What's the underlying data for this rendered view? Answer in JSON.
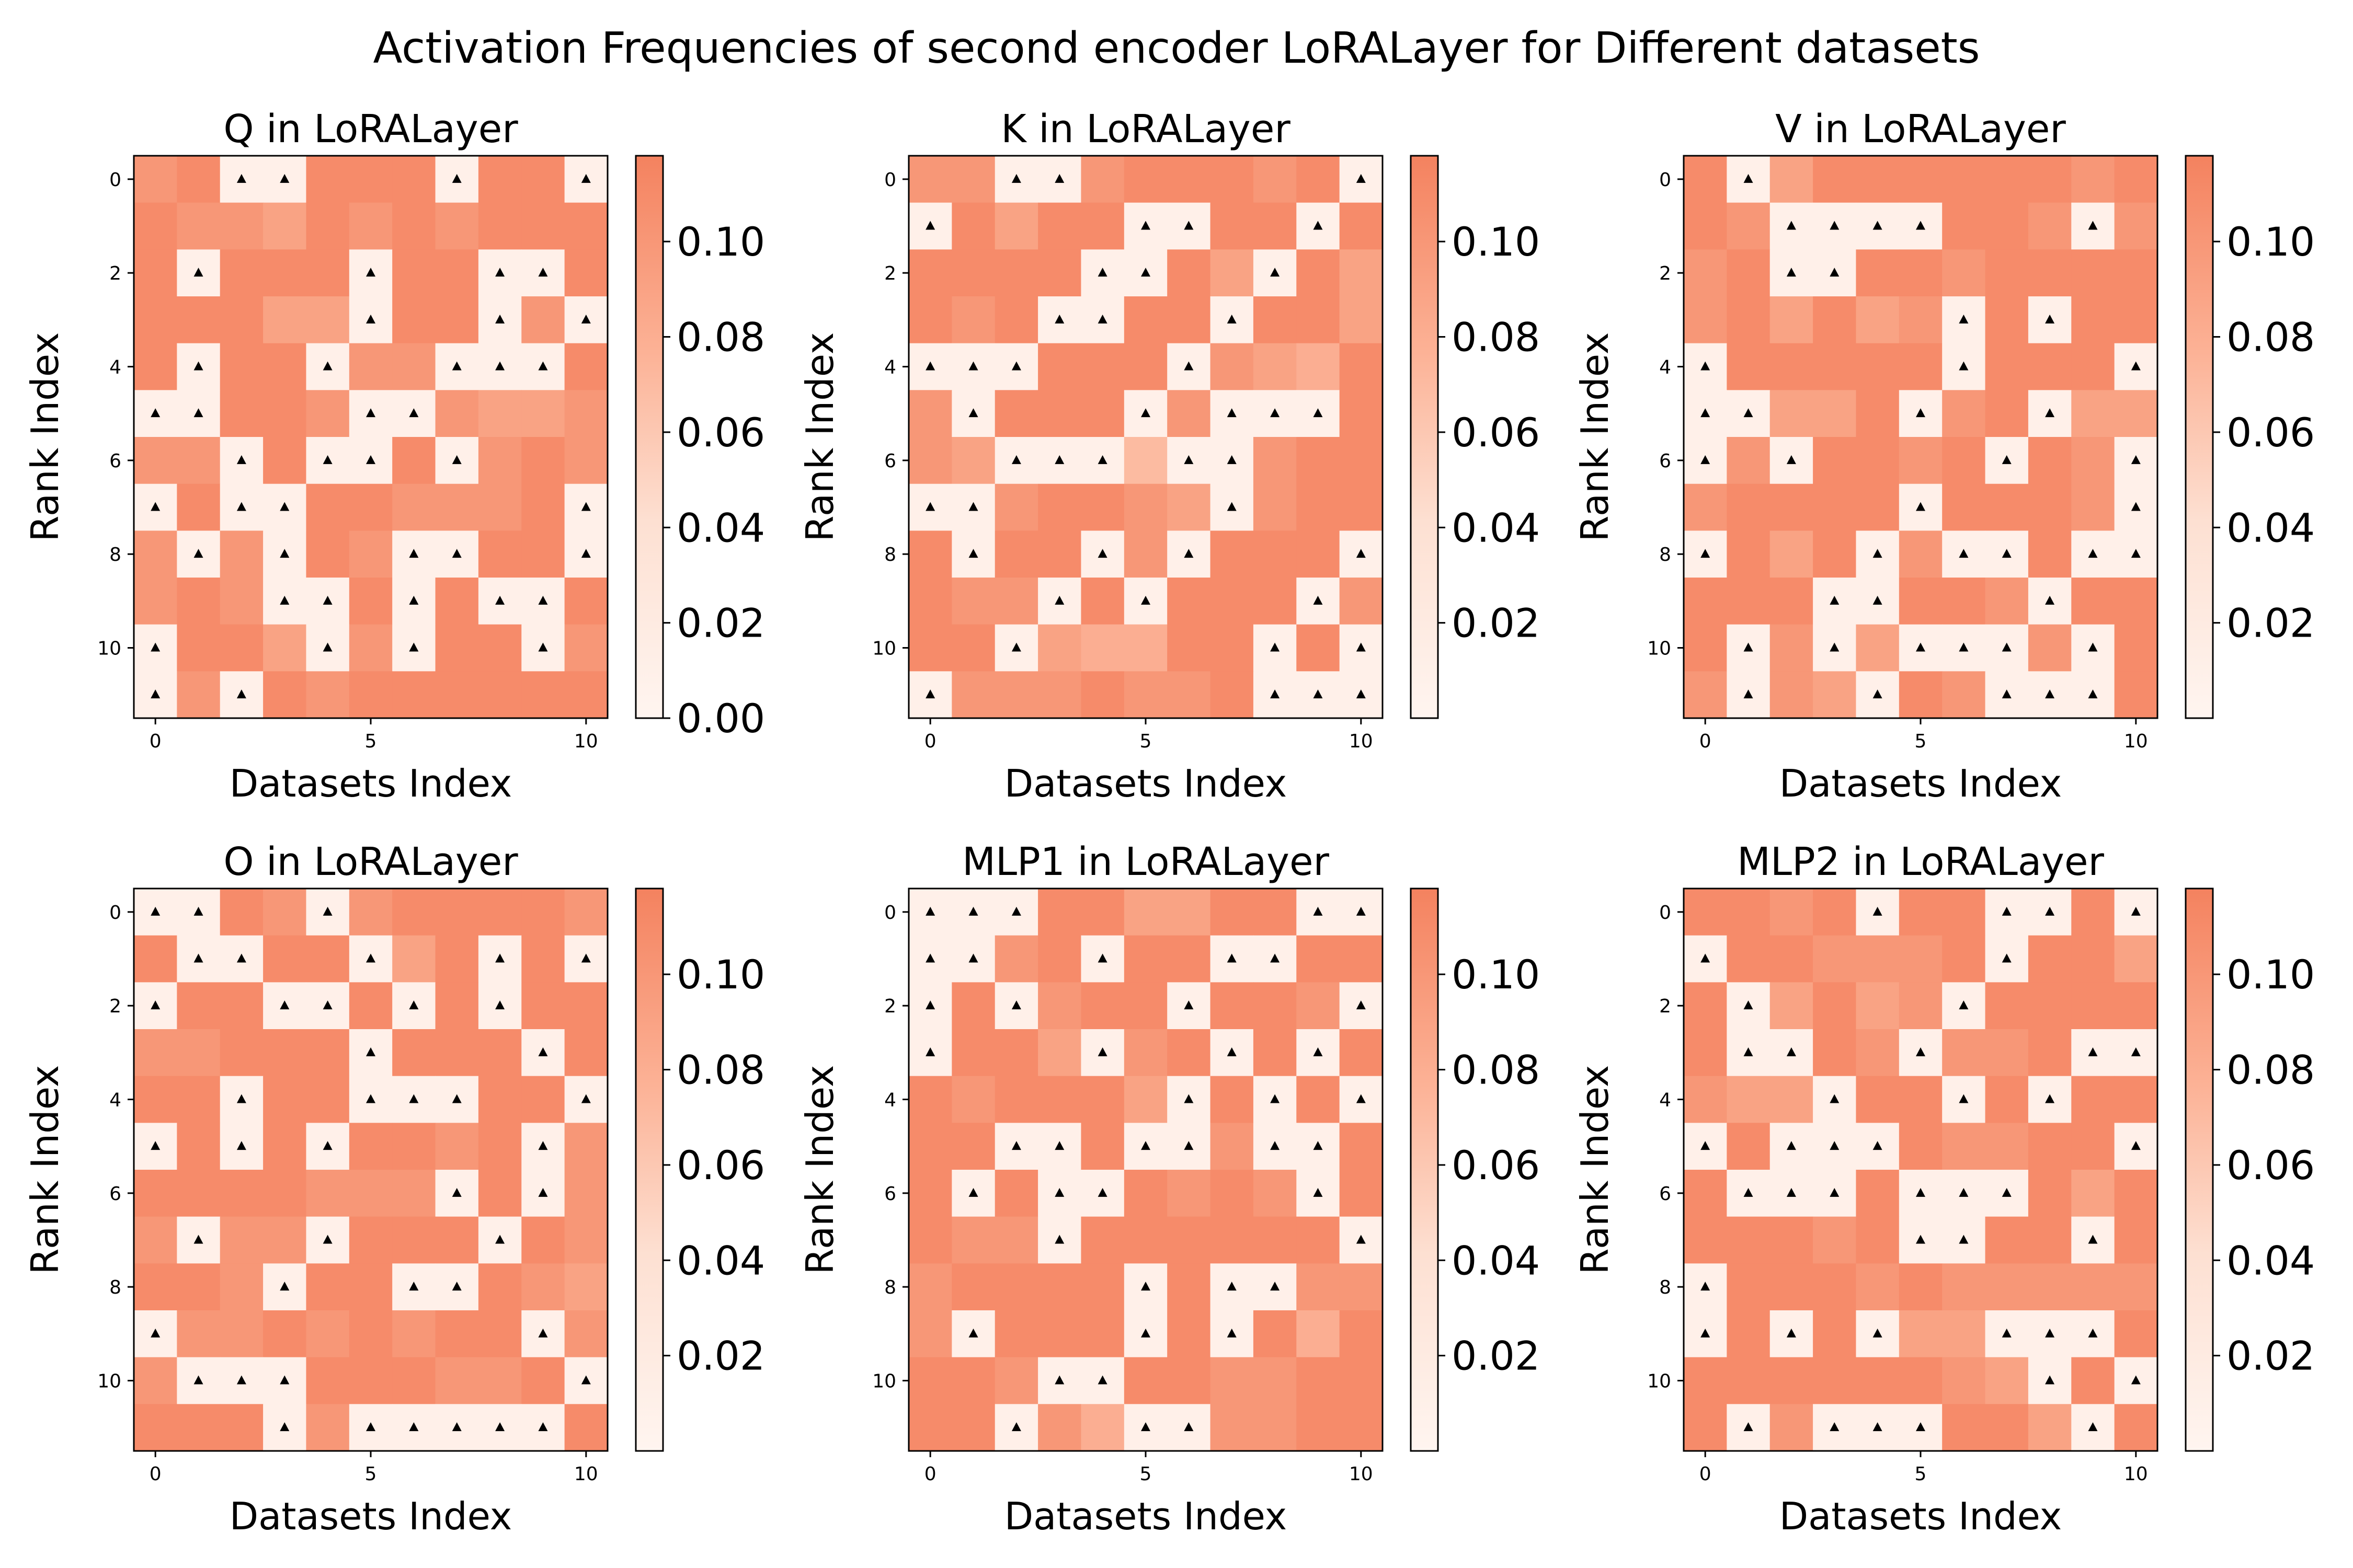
{
  "chart_data": {
    "type": "heatmap",
    "title": "Activation Frequencies of second encoder LoRALayer for Different datasets",
    "xlabel": "Datasets Index",
    "ylabel": "Rank Index",
    "x_ticks": [
      "0",
      "5",
      "10"
    ],
    "y_ticks": [
      "0",
      "2",
      "4",
      "6",
      "8",
      "10"
    ],
    "n_datasets": 11,
    "n_ranks": 12,
    "marker": "▲ marks rank activations below threshold",
    "colormap": [
      "#fff5f0",
      "#fcc3a8",
      "#f9977a",
      "#f4825f"
    ],
    "panels": [
      {
        "title": "Q in LoRALayer",
        "vmin": 0.0,
        "vmax": 0.118,
        "colorbar_ticks": [
          "0.00",
          "0.02",
          "0.04",
          "0.06",
          "0.08",
          "0.10"
        ],
        "values": [
          [
            0.1,
            0.11,
            0.01,
            0.01,
            0.11,
            0.11,
            0.11,
            0.01,
            0.11,
            0.11,
            0.01
          ],
          [
            0.11,
            0.1,
            0.1,
            0.09,
            0.11,
            0.1,
            0.11,
            0.1,
            0.11,
            0.11,
            0.11
          ],
          [
            0.11,
            0.01,
            0.11,
            0.11,
            0.11,
            0.01,
            0.11,
            0.11,
            0.01,
            0.01,
            0.11
          ],
          [
            0.11,
            0.11,
            0.11,
            0.09,
            0.09,
            0.01,
            0.11,
            0.11,
            0.01,
            0.1,
            0.01
          ],
          [
            0.11,
            0.01,
            0.11,
            0.11,
            0.01,
            0.1,
            0.1,
            0.01,
            0.01,
            0.01,
            0.11
          ],
          [
            0.01,
            0.01,
            0.11,
            0.11,
            0.1,
            0.01,
            0.01,
            0.1,
            0.09,
            0.09,
            0.1
          ],
          [
            0.1,
            0.1,
            0.01,
            0.11,
            0.01,
            0.01,
            0.11,
            0.01,
            0.1,
            0.11,
            0.1
          ],
          [
            0.01,
            0.11,
            0.01,
            0.01,
            0.11,
            0.11,
            0.1,
            0.1,
            0.1,
            0.11,
            0.01
          ],
          [
            0.1,
            0.01,
            0.1,
            0.01,
            0.11,
            0.1,
            0.01,
            0.01,
            0.11,
            0.11,
            0.01
          ],
          [
            0.1,
            0.11,
            0.1,
            0.01,
            0.01,
            0.11,
            0.01,
            0.11,
            0.01,
            0.01,
            0.11
          ],
          [
            0.01,
            0.11,
            0.11,
            0.09,
            0.01,
            0.1,
            0.01,
            0.11,
            0.11,
            0.01,
            0.1
          ],
          [
            0.01,
            0.1,
            0.01,
            0.11,
            0.1,
            0.11,
            0.11,
            0.11,
            0.11,
            0.11,
            0.11
          ]
        ]
      },
      {
        "title": "K in LoRALayer",
        "vmin": 0.0,
        "vmax": 0.118,
        "colorbar_ticks": [
          "0.02",
          "0.04",
          "0.06",
          "0.08",
          "0.10"
        ],
        "values": [
          [
            0.1,
            0.1,
            0.01,
            0.01,
            0.1,
            0.11,
            0.11,
            0.11,
            0.1,
            0.11,
            0.01
          ],
          [
            0.01,
            0.11,
            0.09,
            0.11,
            0.11,
            0.01,
            0.01,
            0.11,
            0.11,
            0.01,
            0.11
          ],
          [
            0.11,
            0.11,
            0.11,
            0.11,
            0.01,
            0.01,
            0.11,
            0.09,
            0.01,
            0.11,
            0.09
          ],
          [
            0.11,
            0.1,
            0.11,
            0.01,
            0.01,
            0.11,
            0.11,
            0.01,
            0.11,
            0.11,
            0.09
          ],
          [
            0.01,
            0.01,
            0.01,
            0.11,
            0.11,
            0.11,
            0.01,
            0.1,
            0.09,
            0.08,
            0.11
          ],
          [
            0.1,
            0.01,
            0.11,
            0.11,
            0.11,
            0.01,
            0.1,
            0.01,
            0.01,
            0.01,
            0.11
          ],
          [
            0.1,
            0.09,
            0.01,
            0.01,
            0.01,
            0.07,
            0.01,
            0.01,
            0.1,
            0.11,
            0.11
          ],
          [
            0.01,
            0.01,
            0.1,
            0.11,
            0.11,
            0.1,
            0.09,
            0.01,
            0.1,
            0.11,
            0.11
          ],
          [
            0.11,
            0.01,
            0.11,
            0.11,
            0.01,
            0.1,
            0.01,
            0.11,
            0.11,
            0.11,
            0.01
          ],
          [
            0.11,
            0.1,
            0.1,
            0.01,
            0.11,
            0.01,
            0.11,
            0.11,
            0.11,
            0.01,
            0.1
          ],
          [
            0.11,
            0.11,
            0.01,
            0.09,
            0.08,
            0.08,
            0.11,
            0.11,
            0.01,
            0.11,
            0.01
          ],
          [
            0.01,
            0.1,
            0.1,
            0.1,
            0.11,
            0.1,
            0.1,
            0.11,
            0.01,
            0.01,
            0.01
          ]
        ]
      },
      {
        "title": "V in LoRALayer",
        "vmin": 0.0,
        "vmax": 0.118,
        "colorbar_ticks": [
          "0.02",
          "0.04",
          "0.06",
          "0.08",
          "0.10"
        ],
        "values": [
          [
            0.11,
            0.01,
            0.09,
            0.11,
            0.11,
            0.11,
            0.11,
            0.11,
            0.11,
            0.1,
            0.11
          ],
          [
            0.11,
            0.1,
            0.01,
            0.01,
            0.01,
            0.01,
            0.11,
            0.11,
            0.1,
            0.01,
            0.1
          ],
          [
            0.1,
            0.11,
            0.01,
            0.01,
            0.11,
            0.11,
            0.1,
            0.11,
            0.11,
            0.11,
            0.11
          ],
          [
            0.1,
            0.11,
            0.09,
            0.11,
            0.09,
            0.1,
            0.01,
            0.11,
            0.01,
            0.11,
            0.11
          ],
          [
            0.01,
            0.11,
            0.11,
            0.11,
            0.11,
            0.11,
            0.01,
            0.11,
            0.11,
            0.11,
            0.01
          ],
          [
            0.01,
            0.01,
            0.09,
            0.09,
            0.11,
            0.01,
            0.1,
            0.11,
            0.01,
            0.09,
            0.09
          ],
          [
            0.01,
            0.1,
            0.01,
            0.11,
            0.11,
            0.1,
            0.11,
            0.01,
            0.11,
            0.1,
            0.01
          ],
          [
            0.1,
            0.11,
            0.11,
            0.11,
            0.11,
            0.01,
            0.11,
            0.11,
            0.11,
            0.1,
            0.01
          ],
          [
            0.01,
            0.11,
            0.09,
            0.11,
            0.01,
            0.1,
            0.01,
            0.01,
            0.11,
            0.01,
            0.01
          ],
          [
            0.11,
            0.11,
            0.11,
            0.01,
            0.01,
            0.11,
            0.11,
            0.1,
            0.01,
            0.11,
            0.11
          ],
          [
            0.11,
            0.01,
            0.1,
            0.01,
            0.09,
            0.01,
            0.01,
            0.01,
            0.1,
            0.01,
            0.11
          ],
          [
            0.1,
            0.01,
            0.1,
            0.09,
            0.01,
            0.11,
            0.1,
            0.01,
            0.01,
            0.01,
            0.11
          ]
        ]
      },
      {
        "title": "O in LoRALayer",
        "vmin": 0.0,
        "vmax": 0.118,
        "colorbar_ticks": [
          "0.02",
          "0.04",
          "0.06",
          "0.08",
          "0.10"
        ],
        "values": [
          [
            0.01,
            0.01,
            0.11,
            0.1,
            0.01,
            0.1,
            0.11,
            0.11,
            0.11,
            0.11,
            0.1
          ],
          [
            0.11,
            0.01,
            0.01,
            0.11,
            0.11,
            0.01,
            0.09,
            0.11,
            0.01,
            0.11,
            0.01
          ],
          [
            0.01,
            0.11,
            0.11,
            0.01,
            0.01,
            0.11,
            0.01,
            0.11,
            0.01,
            0.11,
            0.11
          ],
          [
            0.1,
            0.1,
            0.11,
            0.11,
            0.11,
            0.01,
            0.11,
            0.11,
            0.11,
            0.01,
            0.11
          ],
          [
            0.11,
            0.11,
            0.01,
            0.11,
            0.11,
            0.01,
            0.01,
            0.01,
            0.11,
            0.11,
            0.01
          ],
          [
            0.01,
            0.11,
            0.01,
            0.11,
            0.01,
            0.11,
            0.11,
            0.1,
            0.11,
            0.01,
            0.1
          ],
          [
            0.11,
            0.11,
            0.11,
            0.11,
            0.1,
            0.1,
            0.1,
            0.01,
            0.11,
            0.01,
            0.1
          ],
          [
            0.1,
            0.01,
            0.1,
            0.1,
            0.01,
            0.11,
            0.11,
            0.11,
            0.01,
            0.11,
            0.1
          ],
          [
            0.11,
            0.11,
            0.1,
            0.01,
            0.11,
            0.11,
            0.01,
            0.01,
            0.11,
            0.1,
            0.09
          ],
          [
            0.01,
            0.1,
            0.1,
            0.11,
            0.1,
            0.11,
            0.1,
            0.11,
            0.11,
            0.01,
            0.1
          ],
          [
            0.1,
            0.01,
            0.01,
            0.01,
            0.11,
            0.11,
            0.11,
            0.1,
            0.1,
            0.11,
            0.01
          ],
          [
            0.11,
            0.11,
            0.11,
            0.01,
            0.1,
            0.01,
            0.01,
            0.01,
            0.01,
            0.01,
            0.11
          ]
        ]
      },
      {
        "title": "MLP1 in LoRALayer",
        "vmin": 0.0,
        "vmax": 0.118,
        "colorbar_ticks": [
          "0.02",
          "0.04",
          "0.06",
          "0.08",
          "0.10"
        ],
        "values": [
          [
            0.01,
            0.01,
            0.01,
            0.11,
            0.11,
            0.09,
            0.09,
            0.11,
            0.11,
            0.01,
            0.01
          ],
          [
            0.01,
            0.01,
            0.1,
            0.11,
            0.01,
            0.11,
            0.11,
            0.01,
            0.01,
            0.11,
            0.11
          ],
          [
            0.01,
            0.11,
            0.01,
            0.1,
            0.11,
            0.11,
            0.01,
            0.11,
            0.11,
            0.1,
            0.01
          ],
          [
            0.01,
            0.11,
            0.11,
            0.09,
            0.01,
            0.1,
            0.11,
            0.01,
            0.11,
            0.01,
            0.11
          ],
          [
            0.11,
            0.1,
            0.11,
            0.11,
            0.11,
            0.09,
            0.01,
            0.11,
            0.01,
            0.11,
            0.01
          ],
          [
            0.11,
            0.11,
            0.01,
            0.01,
            0.11,
            0.01,
            0.01,
            0.1,
            0.01,
            0.01,
            0.11
          ],
          [
            0.11,
            0.01,
            0.11,
            0.01,
            0.01,
            0.11,
            0.1,
            0.11,
            0.1,
            0.01,
            0.11
          ],
          [
            0.11,
            0.1,
            0.1,
            0.01,
            0.11,
            0.11,
            0.11,
            0.11,
            0.11,
            0.11,
            0.01
          ],
          [
            0.1,
            0.11,
            0.11,
            0.11,
            0.11,
            0.01,
            0.11,
            0.01,
            0.01,
            0.1,
            0.1
          ],
          [
            0.1,
            0.01,
            0.11,
            0.11,
            0.11,
            0.01,
            0.11,
            0.01,
            0.11,
            0.08,
            0.11
          ],
          [
            0.11,
            0.11,
            0.1,
            0.01,
            0.01,
            0.11,
            0.11,
            0.1,
            0.1,
            0.11,
            0.11
          ],
          [
            0.11,
            0.11,
            0.01,
            0.1,
            0.08,
            0.01,
            0.01,
            0.1,
            0.1,
            0.11,
            0.11
          ]
        ]
      },
      {
        "title": "MLP2 in LoRALayer",
        "vmin": 0.0,
        "vmax": 0.118,
        "colorbar_ticks": [
          "0.02",
          "0.04",
          "0.06",
          "0.08",
          "0.10"
        ],
        "values": [
          [
            0.11,
            0.11,
            0.1,
            0.11,
            0.01,
            0.11,
            0.11,
            0.01,
            0.01,
            0.11,
            0.01
          ],
          [
            0.01,
            0.11,
            0.11,
            0.1,
            0.1,
            0.1,
            0.11,
            0.01,
            0.11,
            0.11,
            0.09
          ],
          [
            0.11,
            0.01,
            0.09,
            0.11,
            0.09,
            0.1,
            0.01,
            0.11,
            0.11,
            0.11,
            0.11
          ],
          [
            0.11,
            0.01,
            0.01,
            0.11,
            0.1,
            0.01,
            0.1,
            0.1,
            0.11,
            0.01,
            0.01
          ],
          [
            0.1,
            0.09,
            0.09,
            0.01,
            0.11,
            0.11,
            0.01,
            0.11,
            0.01,
            0.11,
            0.11
          ],
          [
            0.01,
            0.11,
            0.01,
            0.01,
            0.01,
            0.11,
            0.1,
            0.1,
            0.11,
            0.11,
            0.01
          ],
          [
            0.11,
            0.01,
            0.01,
            0.01,
            0.11,
            0.01,
            0.01,
            0.01,
            0.11,
            0.09,
            0.11
          ],
          [
            0.11,
            0.11,
            0.11,
            0.1,
            0.11,
            0.01,
            0.01,
            0.11,
            0.11,
            0.01,
            0.11
          ],
          [
            0.01,
            0.11,
            0.11,
            0.11,
            0.1,
            0.11,
            0.1,
            0.1,
            0.1,
            0.1,
            0.1
          ],
          [
            0.01,
            0.11,
            0.01,
            0.11,
            0.01,
            0.09,
            0.09,
            0.01,
            0.01,
            0.01,
            0.11
          ],
          [
            0.11,
            0.11,
            0.11,
            0.11,
            0.11,
            0.11,
            0.1,
            0.09,
            0.01,
            0.11,
            0.01
          ],
          [
            0.11,
            0.01,
            0.1,
            0.01,
            0.01,
            0.01,
            0.11,
            0.11,
            0.09,
            0.01,
            0.11
          ]
        ]
      }
    ]
  }
}
